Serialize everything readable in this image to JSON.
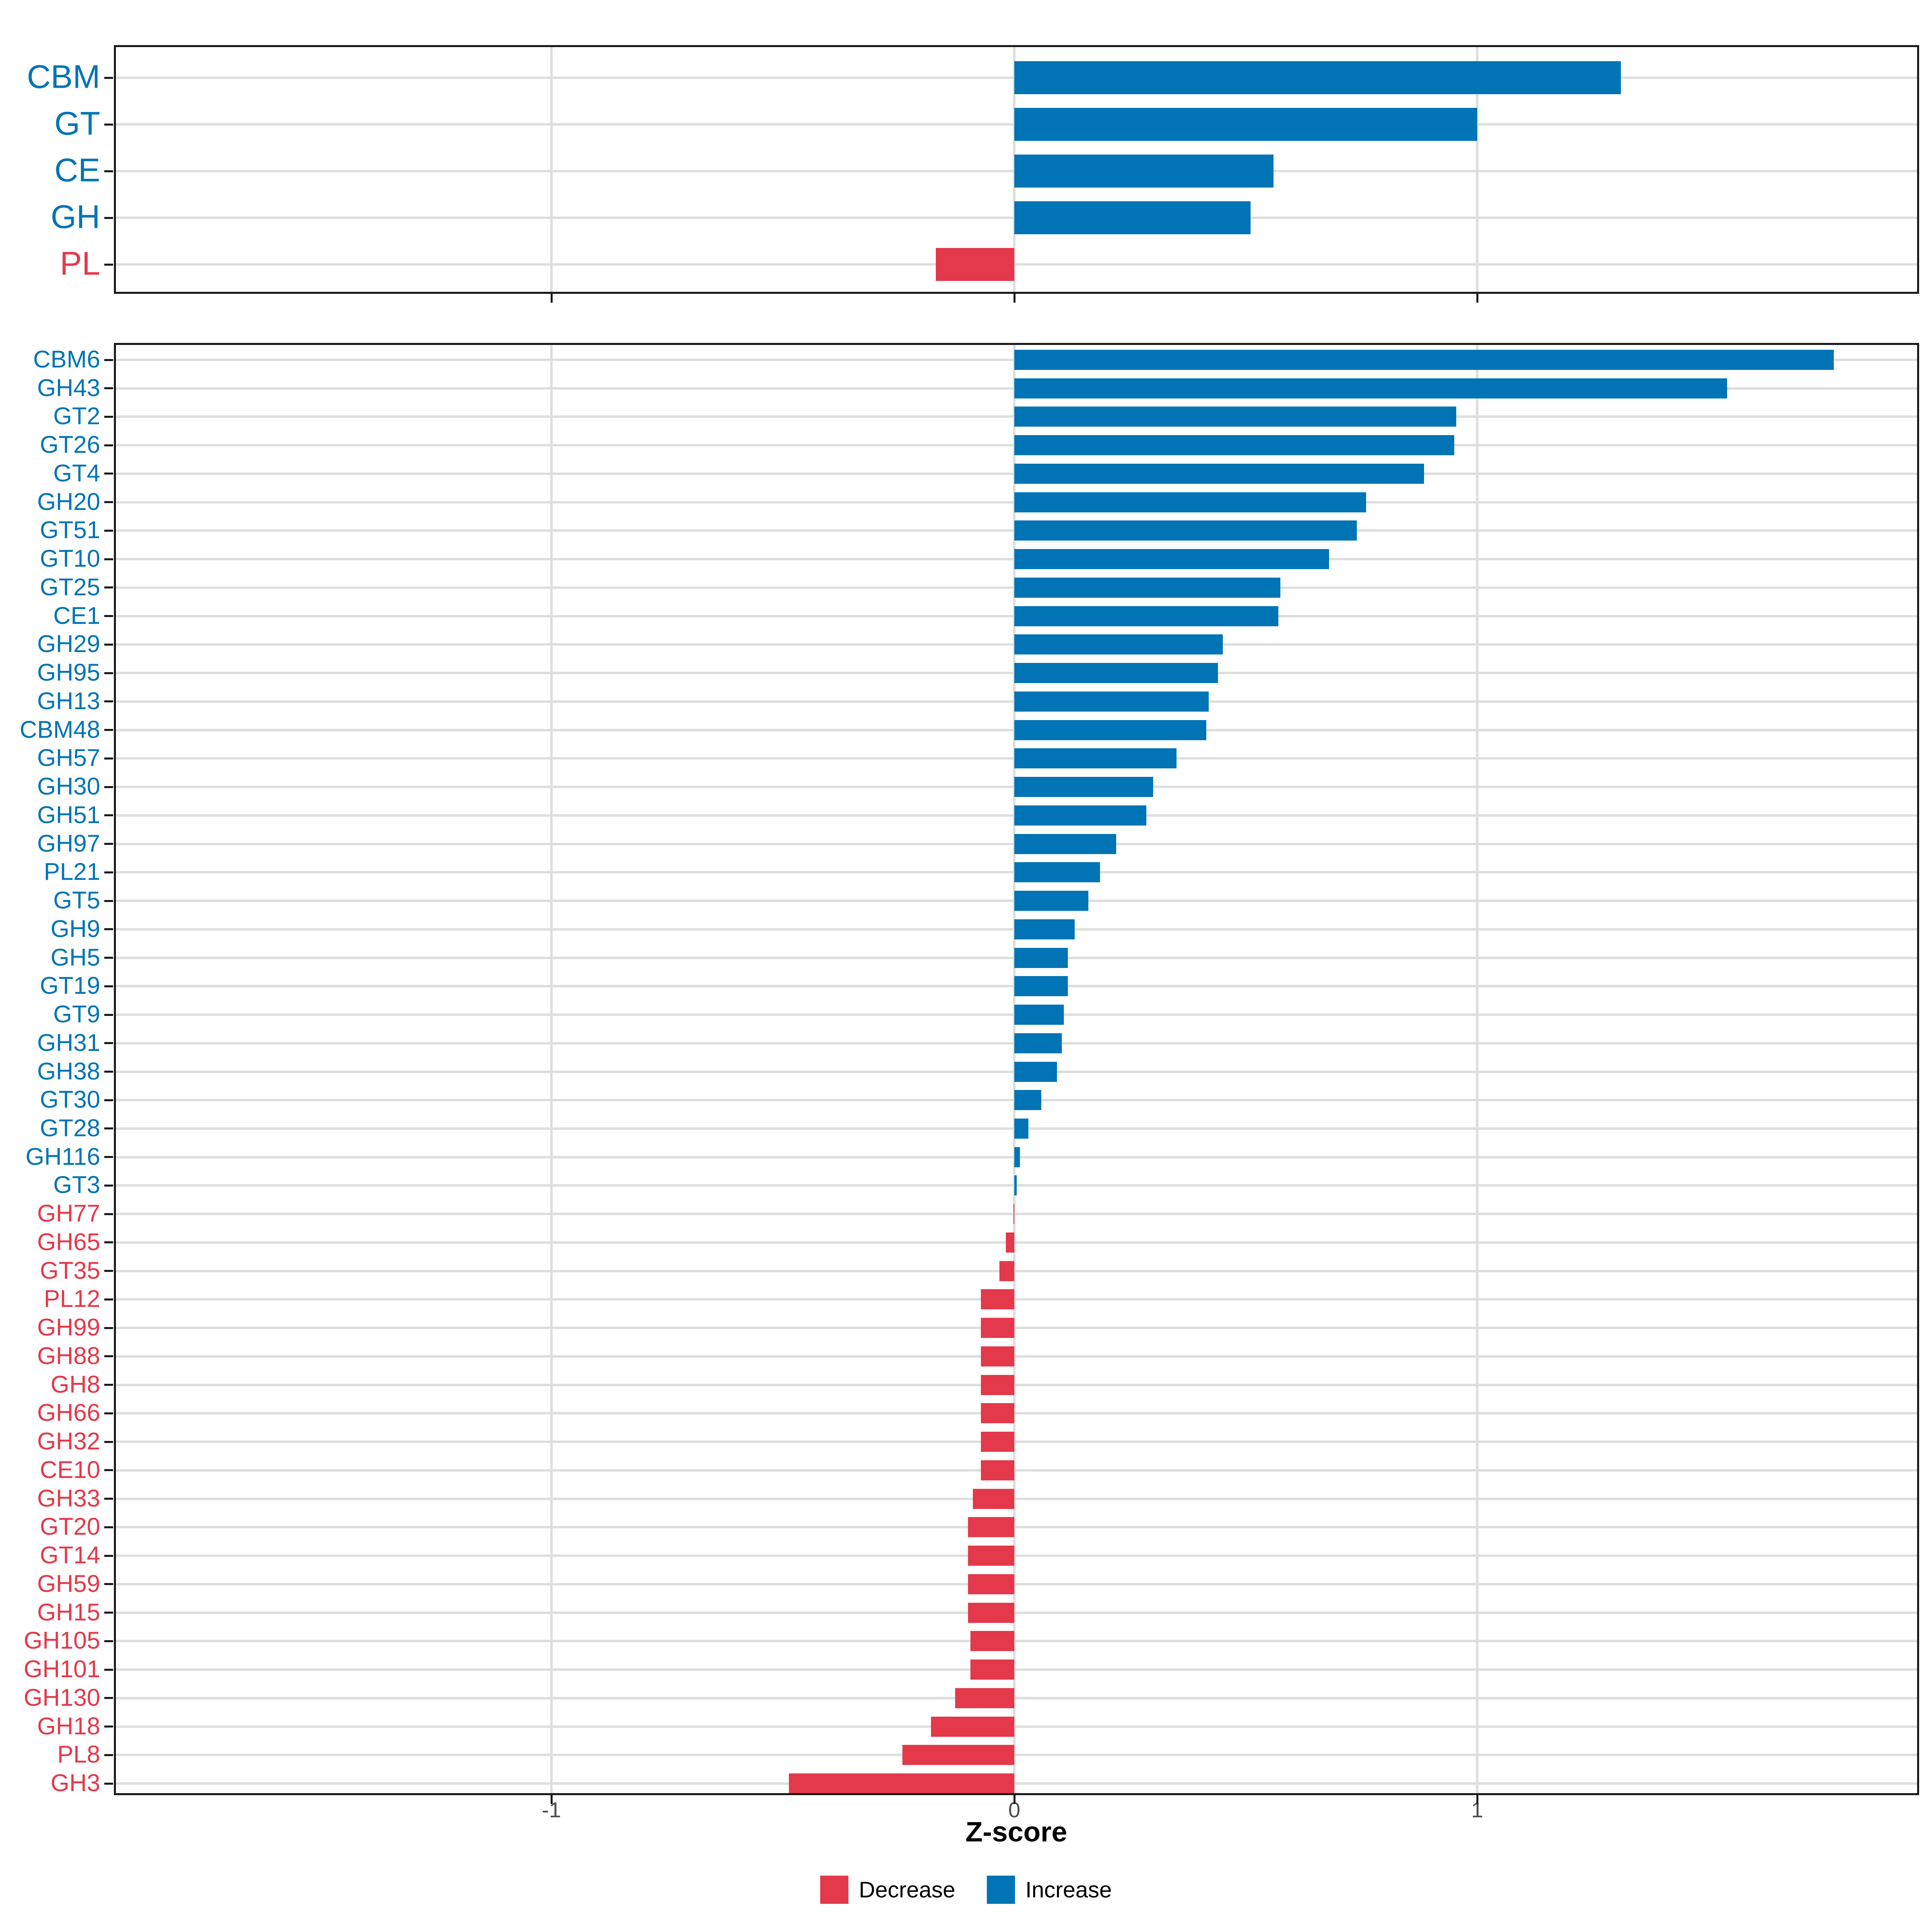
{
  "figure": {
    "background": "#ffffff",
    "axis": {
      "label": "Z-score",
      "ticks": [
        -1,
        0,
        1
      ],
      "tick_labels": [
        "-1",
        "0",
        "1"
      ],
      "range": [
        -1.95,
        1.96
      ]
    },
    "legend": {
      "items": [
        {
          "label": "Decrease",
          "color": "#e3394a"
        },
        {
          "label": "Increase",
          "color": "#0074b4"
        }
      ]
    },
    "colors": {
      "increase": "#0074b4",
      "decrease": "#e3394a",
      "gridline": "#dedede",
      "panel_border": "#1a1a1a",
      "tick": "#1a1a1a",
      "tick_label": "#4d4d4d",
      "axis_title": "#000000"
    }
  },
  "chart_data": [
    {
      "type": "bar",
      "orientation": "horizontal",
      "panel": "top",
      "title": "",
      "xlabel": "Z-score",
      "ylabel": "",
      "xlim": [
        -1.95,
        1.96
      ],
      "xticks": [
        -1,
        0,
        1
      ],
      "grid": "major",
      "legend_position": "bottom",
      "categories": [
        "CBM",
        "GT",
        "CE",
        "GH",
        "PL"
      ],
      "values": [
        1.31,
        1.0,
        0.56,
        0.51,
        -0.17
      ],
      "directions": [
        "Increase",
        "Increase",
        "Increase",
        "Increase",
        "Decrease"
      ]
    },
    {
      "type": "bar",
      "orientation": "horizontal",
      "panel": "bottom",
      "title": "",
      "xlabel": "Z-score",
      "ylabel": "",
      "xlim": [
        -1.95,
        1.96
      ],
      "xticks": [
        -1,
        0,
        1
      ],
      "grid": "major",
      "legend_position": "bottom",
      "categories": [
        "CBM6",
        "GH43",
        "GT2",
        "GT26",
        "GT4",
        "GH20",
        "GT51",
        "GT10",
        "GT25",
        "CE1",
        "GH29",
        "GH95",
        "GH13",
        "CBM48",
        "GH57",
        "GH30",
        "GH51",
        "GH97",
        "PL21",
        "GT5",
        "GH9",
        "GH5",
        "GT19",
        "GT9",
        "GH31",
        "GH38",
        "GT30",
        "GT28",
        "GH116",
        "GT3",
        "GH77",
        "GH65",
        "GT35",
        "PL12",
        "GH99",
        "GH88",
        "GH8",
        "GH66",
        "GH32",
        "CE10",
        "GH33",
        "GT20",
        "GT14",
        "GH59",
        "GH15",
        "GH105",
        "GH101",
        "GH130",
        "GH18",
        "PL8",
        "GH3"
      ],
      "values": [
        1.77,
        1.54,
        0.955,
        0.95,
        0.885,
        0.76,
        0.74,
        0.68,
        0.575,
        0.57,
        0.45,
        0.44,
        0.42,
        0.415,
        0.35,
        0.3,
        0.285,
        0.22,
        0.185,
        0.16,
        0.13,
        0.116,
        0.116,
        0.107,
        0.103,
        0.092,
        0.058,
        0.03,
        0.012,
        0.005,
        -0.002,
        -0.018,
        -0.032,
        -0.072,
        -0.072,
        -0.072,
        -0.072,
        -0.072,
        -0.072,
        -0.072,
        -0.09,
        -0.1,
        -0.1,
        -0.1,
        -0.1,
        -0.095,
        -0.095,
        -0.128,
        -0.18,
        -0.242,
        -0.487
      ],
      "directions": [
        "Increase",
        "Increase",
        "Increase",
        "Increase",
        "Increase",
        "Increase",
        "Increase",
        "Increase",
        "Increase",
        "Increase",
        "Increase",
        "Increase",
        "Increase",
        "Increase",
        "Increase",
        "Increase",
        "Increase",
        "Increase",
        "Increase",
        "Increase",
        "Increase",
        "Increase",
        "Increase",
        "Increase",
        "Increase",
        "Increase",
        "Increase",
        "Increase",
        "Increase",
        "Increase",
        "Decrease",
        "Decrease",
        "Decrease",
        "Decrease",
        "Decrease",
        "Decrease",
        "Decrease",
        "Decrease",
        "Decrease",
        "Decrease",
        "Decrease",
        "Decrease",
        "Decrease",
        "Decrease",
        "Decrease",
        "Decrease",
        "Decrease",
        "Decrease",
        "Decrease",
        "Decrease",
        "Decrease"
      ]
    }
  ]
}
